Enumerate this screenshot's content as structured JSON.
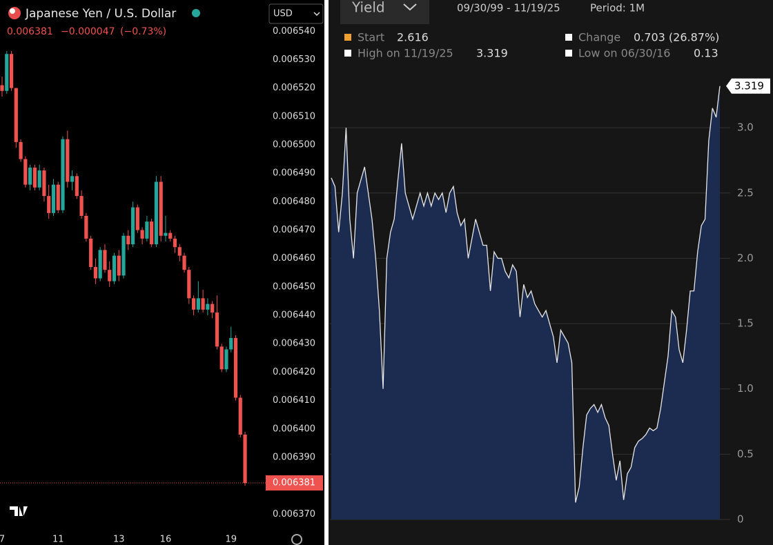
{
  "chart_data": [
    {
      "type": "candlestick",
      "title": "Japanese Yen / U.S. Dollar",
      "currency": "USD",
      "last": 0.006381,
      "change": "−0.000047",
      "change_pct": "(−0.73%)",
      "up_color": "#26a69a",
      "down_color": "#ef5350",
      "categories": [
        "7",
        null,
        null,
        null,
        null,
        null,
        null,
        null,
        null,
        null,
        null,
        null,
        "11",
        null,
        null,
        null,
        null,
        null,
        null,
        null,
        null,
        null,
        null,
        null,
        null,
        "13",
        null,
        null,
        null,
        null,
        null,
        null,
        null,
        null,
        null,
        "16",
        null,
        null,
        null,
        null,
        null,
        null,
        null,
        null,
        null,
        null,
        null,
        null,
        null,
        "19",
        null,
        null,
        null
      ],
      "open": [
        0.006521,
        0.006519,
        0.006532,
        0.00652,
        0.006501,
        0.006495,
        0.006486,
        0.006492,
        0.006485,
        0.006491,
        0.006482,
        0.006476,
        0.006486,
        0.006477,
        0.006502,
        0.006487,
        0.006489,
        0.006482,
        0.006475,
        0.006467,
        0.006457,
        0.006453,
        0.006463,
        0.006456,
        0.006452,
        0.006461,
        0.006454,
        0.006468,
        0.006465,
        0.006478,
        0.00647,
        0.006467,
        0.006473,
        0.006465,
        0.006487,
        0.006468,
        0.006469,
        0.006467,
        0.006464,
        0.006461,
        0.006456,
        0.006446,
        0.006442,
        0.006446,
        0.006442,
        0.006444,
        0.006441,
        0.006429,
        0.006421,
        0.006428,
        0.006432,
        0.006411,
        0.006398
      ],
      "high": [
        0.006524,
        0.006533,
        0.006533,
        0.00652,
        0.006502,
        0.006496,
        0.006493,
        0.006493,
        0.006493,
        0.006492,
        0.006486,
        0.006488,
        0.006487,
        0.006503,
        0.006505,
        0.006491,
        0.00649,
        0.006484,
        0.006476,
        0.006468,
        0.00646,
        0.006464,
        0.006465,
        0.006459,
        0.006462,
        0.006463,
        0.006469,
        0.00647,
        0.00648,
        0.006479,
        0.006471,
        0.006475,
        0.006474,
        0.006489,
        0.006489,
        0.006475,
        0.00647,
        0.006468,
        0.006465,
        0.006462,
        0.006457,
        0.006447,
        0.006452,
        0.006449,
        0.006446,
        0.006445,
        0.006447,
        0.00643,
        0.006429,
        0.006436,
        0.006433,
        0.006412,
        0.006399
      ],
      "low": [
        0.006517,
        0.006518,
        0.006519,
        0.006499,
        0.006494,
        0.006485,
        0.006484,
        0.006484,
        0.006484,
        0.00648,
        0.006474,
        0.006475,
        0.006476,
        0.006476,
        0.006485,
        0.006484,
        0.006481,
        0.006474,
        0.006466,
        0.006456,
        0.006451,
        0.006452,
        0.006455,
        0.00645,
        0.006451,
        0.006452,
        0.006453,
        0.006463,
        0.006464,
        0.006469,
        0.006465,
        0.006466,
        0.006464,
        0.006464,
        0.006466,
        0.006466,
        0.006466,
        0.006462,
        0.006459,
        0.006455,
        0.006444,
        0.00644,
        0.006441,
        0.006441,
        0.00644,
        0.006439,
        0.006428,
        0.00642,
        0.00642,
        0.006427,
        0.00641,
        0.006397,
        0.00638
      ],
      "close": [
        0.006519,
        0.006532,
        0.00652,
        0.006501,
        0.006495,
        0.006486,
        0.006492,
        0.006485,
        0.006491,
        0.006482,
        0.006476,
        0.006486,
        0.006477,
        0.006502,
        0.006487,
        0.006489,
        0.006482,
        0.006475,
        0.006467,
        0.006457,
        0.006453,
        0.006463,
        0.006456,
        0.006452,
        0.006461,
        0.006454,
        0.006468,
        0.006465,
        0.006478,
        0.00647,
        0.006467,
        0.006473,
        0.006465,
        0.006487,
        0.006468,
        0.006469,
        0.006467,
        0.006464,
        0.006461,
        0.006456,
        0.006446,
        0.006442,
        0.006446,
        0.006442,
        0.006444,
        0.006441,
        0.006429,
        0.006421,
        0.006428,
        0.006432,
        0.006411,
        0.006398,
        0.006381
      ],
      "ylim": [
        0.006364,
        0.006551
      ],
      "yticks": [
        {
          "value": 0.00637,
          "label": "0.006370"
        },
        {
          "value": 0.00639,
          "label": "0.006390"
        },
        {
          "value": 0.0064,
          "label": "0.006400"
        },
        {
          "value": 0.00641,
          "label": "0.006410"
        },
        {
          "value": 0.00642,
          "label": "0.006420"
        },
        {
          "value": 0.00643,
          "label": "0.006430"
        },
        {
          "value": 0.00644,
          "label": "0.006440"
        },
        {
          "value": 0.00645,
          "label": "0.006450"
        },
        {
          "value": 0.00646,
          "label": "0.006460"
        },
        {
          "value": 0.00647,
          "label": "0.006470"
        },
        {
          "value": 0.00648,
          "label": "0.006480"
        },
        {
          "value": 0.00649,
          "label": "0.006490"
        },
        {
          "value": 0.0065,
          "label": "0.006500"
        },
        {
          "value": 0.00651,
          "label": "0.006510"
        },
        {
          "value": 0.00652,
          "label": "0.006520"
        },
        {
          "value": 0.00653,
          "label": "0.006530"
        },
        {
          "value": 0.00654,
          "label": "0.006540"
        }
      ]
    },
    {
      "type": "area",
      "title": "Yield",
      "date_range": "09/30/99 - 11/19/25",
      "period": "Period: 1M",
      "legend": {
        "start_label": "Start",
        "start": 2.616,
        "high_label": "High on 11/19/25",
        "high": 3.319,
        "change_label": "Change",
        "change": "0.703 (26.87%)",
        "low_label": "Low on 06/30/16",
        "low": 0.13
      },
      "color": "#1c2b50",
      "line_color": "#e8e8e8",
      "values": [
        2.616,
        2.55,
        2.2,
        2.5,
        3.0,
        2.3,
        2.0,
        2.5,
        2.6,
        2.7,
        2.5,
        2.3,
        2.0,
        1.6,
        1.0,
        2.0,
        2.2,
        2.3,
        2.6,
        2.88,
        2.5,
        2.4,
        2.3,
        2.4,
        2.5,
        2.4,
        2.5,
        2.4,
        2.5,
        2.45,
        2.5,
        2.35,
        2.5,
        2.55,
        2.35,
        2.25,
        2.3,
        2.0,
        2.15,
        2.3,
        2.2,
        2.1,
        2.1,
        1.75,
        2.05,
        2.0,
        2.0,
        1.9,
        1.85,
        1.95,
        1.9,
        1.55,
        1.8,
        1.7,
        1.75,
        1.65,
        1.6,
        1.55,
        1.6,
        1.5,
        1.4,
        1.2,
        1.45,
        1.4,
        1.35,
        1.2,
        0.13,
        0.25,
        0.55,
        0.8,
        0.85,
        0.88,
        0.82,
        0.88,
        0.78,
        0.72,
        0.5,
        0.3,
        0.45,
        0.15,
        0.35,
        0.4,
        0.55,
        0.6,
        0.62,
        0.65,
        0.7,
        0.68,
        0.7,
        0.85,
        1.05,
        1.25,
        1.6,
        1.55,
        1.3,
        1.2,
        1.45,
        1.75,
        1.75,
        2.05,
        2.25,
        2.3,
        2.9,
        3.15,
        3.08,
        3.319
      ],
      "ylim": [
        0,
        3.5
      ],
      "yticks": [
        0,
        0.5,
        {
          "value": 1,
          "label": "1.0"
        },
        1.5,
        {
          "value": 2,
          "label": "2.0"
        },
        2.5,
        {
          "value": 3,
          "label": "3.0"
        }
      ],
      "grid": true
    }
  ]
}
